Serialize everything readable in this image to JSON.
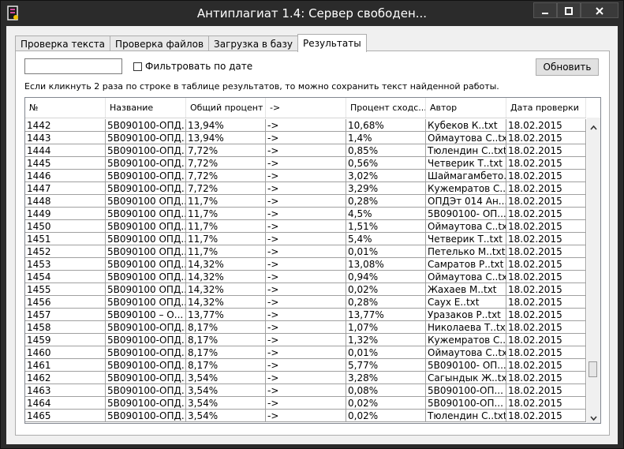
{
  "window": {
    "title": "Антиплагиат 1.4: Сервер свободен..."
  },
  "tabs": [
    {
      "label": "Проверка текста"
    },
    {
      "label": "Проверка файлов"
    },
    {
      "label": "Загрузка в базу"
    },
    {
      "label": "Результаты"
    }
  ],
  "filter": {
    "value": "",
    "checkbox_label": "Фильтровать по дате",
    "checked": false
  },
  "refresh_label": "Обновить",
  "hint": "Если кликнуть 2 раза по строке в таблице результатов, то можно сохранить текст найденной работы.",
  "table": {
    "columns": [
      "№",
      "Название",
      "Общий процент",
      "->",
      "Процент сходс...",
      "Автор",
      "Дата проверки"
    ],
    "rows": [
      [
        "1442",
        "5В090100-ОПД...",
        "13,94%",
        "->",
        "10,68%",
        "Кубеков К..txt",
        "18.02.2015"
      ],
      [
        "1443",
        "5В090100-ОПД...",
        "13,94%",
        "->",
        "1,4%",
        "Оймаутова С..txt",
        "18.02.2015"
      ],
      [
        "1444",
        "5В090100-ОПД...",
        "7,72%",
        "->",
        "0,85%",
        "Тюлендин С..txt",
        "18.02.2015"
      ],
      [
        "1445",
        "5В090100-ОПД...",
        "7,72%",
        "->",
        "0,56%",
        "Четверик Т..txt",
        "18.02.2015"
      ],
      [
        "1446",
        "5В090100-ОПД...",
        "7,72%",
        "->",
        "3,02%",
        "Шаймагамбето...",
        "18.02.2015"
      ],
      [
        "1447",
        "5В090100-ОПД...",
        "7,72%",
        "->",
        "3,29%",
        "Кужемратов С....",
        "18.02.2015"
      ],
      [
        "1448",
        "5В090100 ОПД...",
        "11,7%",
        "->",
        "0,28%",
        "ОПДЭт 014 Ан...",
        "18.02.2015"
      ],
      [
        "1449",
        "5В090100 ОПД...",
        "11,7%",
        "->",
        "4,5%",
        "5В090100- ОП...",
        "18.02.2015"
      ],
      [
        "1450",
        "5В090100 ОПД...",
        "11,7%",
        "->",
        "1,51%",
        "Оймаутова С..txt",
        "18.02.2015"
      ],
      [
        "1451",
        "5В090100 ОПД...",
        "11,7%",
        "->",
        "5,4%",
        "Четверик Т..txt",
        "18.02.2015"
      ],
      [
        "1452",
        "5В090100 ОПД...",
        "11,7%",
        "->",
        "0,01%",
        "Петелько М..txt",
        "18.02.2015"
      ],
      [
        "1453",
        "5В090100 ОПД...",
        "14,32%",
        "->",
        "13,08%",
        "Самратов Р..txt",
        "18.02.2015"
      ],
      [
        "1454",
        "5В090100 ОПД...",
        "14,32%",
        "->",
        "0,94%",
        "Оймаутова С..txt",
        "18.02.2015"
      ],
      [
        "1455",
        "5В090100 ОПД...",
        "14,32%",
        "->",
        "0,02%",
        "Жахаев М..txt",
        "18.02.2015"
      ],
      [
        "1456",
        "5В090100 ОПД...",
        "14,32%",
        "->",
        "0,28%",
        "Саух Е..txt",
        "18.02.2015"
      ],
      [
        "1457",
        "5В090100 – О...",
        "13,77%",
        "->",
        "13,77%",
        "Уразаков Р..txt",
        "18.02.2015"
      ],
      [
        "1458",
        "5В090100-ОПД...",
        "8,17%",
        "->",
        "1,07%",
        "Николаева Т..txt",
        "18.02.2015"
      ],
      [
        "1459",
        "5В090100-ОПД...",
        "8,17%",
        "->",
        "1,32%",
        "Кужемратов С....",
        "18.02.2015"
      ],
      [
        "1460",
        "5В090100-ОПД...",
        "8,17%",
        "->",
        "0,01%",
        "Оймаутова С..txt",
        "18.02.2015"
      ],
      [
        "1461",
        "5В090100-ОПД...",
        "8,17%",
        "->",
        "5,77%",
        "5В090100- ОП...",
        "18.02.2015"
      ],
      [
        "1462",
        "5В090100-ОПД...",
        "3,54%",
        "->",
        "3,28%",
        "Сагындык Ж..txt",
        "18.02.2015"
      ],
      [
        "1463",
        "5В090100-ОПД...",
        "3,54%",
        "->",
        "0,08%",
        "5В090100-ОП...",
        "18.02.2015"
      ],
      [
        "1464",
        "5В090100-ОПД...",
        "3,54%",
        "->",
        "0,02%",
        "5В090100-ОП...",
        "18.02.2015"
      ],
      [
        "1465",
        "5В090100-ОПД...",
        "3,54%",
        "->",
        "0,02%",
        "Тюлендин С..txt",
        "18.02.2015"
      ]
    ]
  },
  "icons": {
    "app": "app-icon",
    "minimize": "minimize-icon",
    "maximize": "maximize-icon",
    "close": "close-icon",
    "scroll_up": "chevron-up-icon",
    "scroll_down": "chevron-down-icon"
  }
}
